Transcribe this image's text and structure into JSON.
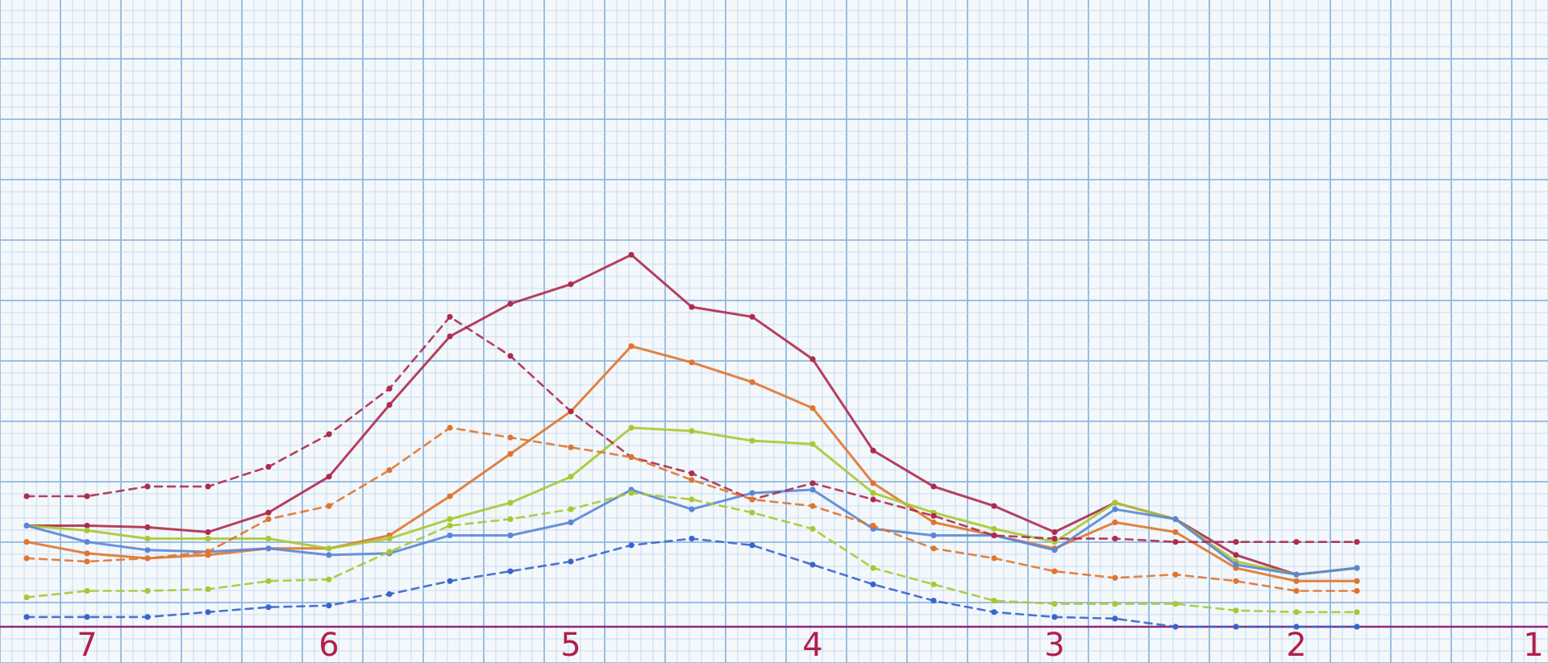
{
  "colors": {
    "paper": "#f4f8fb",
    "grid_minor": "#b9d4ec",
    "grid_major": "#8fb8e0",
    "axis": "#8a2a7c",
    "tick_label": "#b21e4b"
  },
  "chart_data": {
    "type": "line",
    "title": "",
    "xlabel": "",
    "ylabel": "",
    "x_reversed": true,
    "xlim": [
      0.65,
      7.3
    ],
    "ylim": [
      0,
      13.5
    ],
    "grid": true,
    "legend": "none",
    "x_ticks": [
      {
        "value": 7,
        "label": "7"
      },
      {
        "value": 6,
        "label": "6"
      },
      {
        "value": 5,
        "label": "5"
      },
      {
        "value": 4,
        "label": "4"
      },
      {
        "value": 3,
        "label": "3"
      },
      {
        "value": 2,
        "label": "2"
      },
      {
        "value": 1,
        "label": "1"
      }
    ],
    "x": [
      7.25,
      7.0,
      6.75,
      6.5,
      6.25,
      6.0,
      5.75,
      5.5,
      5.25,
      5.0,
      4.75,
      4.5,
      4.25,
      4.0,
      3.75,
      3.5,
      3.25,
      3.0,
      2.75,
      2.5,
      2.25,
      2.0,
      1.75
    ],
    "series": [
      {
        "color": "#b02a4e",
        "style": "solid",
        "values": [
          3.1,
          3.1,
          3.05,
          2.9,
          3.5,
          4.6,
          6.8,
          8.9,
          9.9,
          10.5,
          11.4,
          9.8,
          9.5,
          8.2,
          5.4,
          4.3,
          3.7,
          2.9,
          3.8,
          3.3,
          2.2,
          1.6,
          1.8
        ]
      },
      {
        "color": "#e0742e",
        "style": "solid",
        "values": [
          2.6,
          2.25,
          2.1,
          2.2,
          2.4,
          2.4,
          2.8,
          4.0,
          5.3,
          6.6,
          8.6,
          8.1,
          7.5,
          6.7,
          4.4,
          3.2,
          2.8,
          2.4,
          3.2,
          2.9,
          1.8,
          1.4,
          1.4
        ]
      },
      {
        "color": "#a8c832",
        "style": "solid",
        "values": [
          3.1,
          2.95,
          2.7,
          2.7,
          2.7,
          2.4,
          2.7,
          3.3,
          3.8,
          4.6,
          6.1,
          6.0,
          5.7,
          5.6,
          4.1,
          3.5,
          3.0,
          2.6,
          3.8,
          3.3,
          2.0,
          1.6,
          1.8
        ]
      },
      {
        "color": "#5a86d4",
        "style": "solid",
        "values": [
          3.1,
          2.6,
          2.35,
          2.3,
          2.4,
          2.2,
          2.25,
          2.8,
          2.8,
          3.2,
          4.2,
          3.6,
          4.1,
          4.2,
          3.0,
          2.8,
          2.8,
          2.35,
          3.6,
          3.3,
          1.9,
          1.6,
          1.8
        ]
      },
      {
        "color": "#b02a4e",
        "style": "dashed",
        "values": [
          4.0,
          4.0,
          4.3,
          4.3,
          4.9,
          5.9,
          7.3,
          9.5,
          8.3,
          6.6,
          5.2,
          4.7,
          3.9,
          4.4,
          3.9,
          3.4,
          2.8,
          2.7,
          2.7,
          2.6,
          2.6,
          2.6,
          2.6
        ]
      },
      {
        "color": "#e0742e",
        "style": "dashed",
        "values": [
          2.1,
          2.0,
          2.1,
          2.3,
          3.3,
          3.7,
          4.8,
          6.1,
          5.8,
          5.5,
          5.2,
          4.5,
          3.9,
          3.7,
          3.1,
          2.4,
          2.1,
          1.7,
          1.5,
          1.6,
          1.4,
          1.1,
          1.1
        ]
      },
      {
        "color": "#a8c832",
        "style": "dashed",
        "values": [
          0.9,
          1.1,
          1.1,
          1.15,
          1.4,
          1.45,
          2.3,
          3.1,
          3.3,
          3.6,
          4.1,
          3.9,
          3.5,
          3.0,
          1.8,
          1.3,
          0.8,
          0.7,
          0.7,
          0.7,
          0.5,
          0.45,
          0.45
        ]
      },
      {
        "color": "#3a64cc",
        "style": "dashed",
        "values": [
          0.3,
          0.3,
          0.3,
          0.45,
          0.6,
          0.65,
          1.0,
          1.4,
          1.7,
          2.0,
          2.5,
          2.7,
          2.5,
          1.9,
          1.3,
          0.8,
          0.45,
          0.3,
          0.25,
          0.0,
          0.0,
          0.0,
          0.0
        ]
      }
    ]
  }
}
